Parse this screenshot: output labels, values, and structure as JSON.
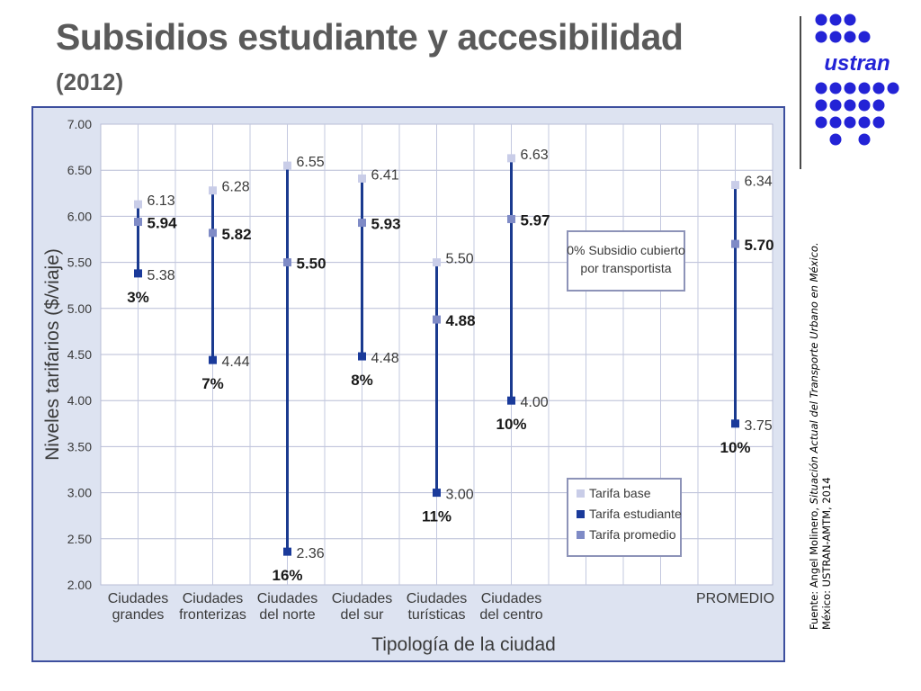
{
  "slide": {
    "title": "Subsidios estudiante y accesibilidad",
    "subtitle": "(2012)",
    "logo_text": "ustran",
    "source_line1_prefix": "Fuente: Angel Molinero, ",
    "source_line1_italic": "Situación Actual del Transporte Urbano en México.",
    "source_line2": "México: USTRAN-AMTM, 2014"
  },
  "colors": {
    "logo_blue": "#2323d6",
    "frame_border": "#3d4f9e",
    "frame_bg": "#dde3f1",
    "plot_bg": "#ffffff",
    "line_blue": "#1a3a8f",
    "tarifa_base": "#c9cde8",
    "tarifa_estudiante": "#1a3a9a",
    "tarifa_promedio": "#7f8bc6"
  },
  "chart_data": {
    "type": "range",
    "xlabel": "Tipología de la ciudad",
    "ylabel": "Niveles tarifarios ($/viaje)",
    "ylim": [
      2.0,
      7.0
    ],
    "y_ticks": [
      "2.00",
      "2.50",
      "3.00",
      "3.50",
      "4.00",
      "4.50",
      "5.00",
      "5.50",
      "6.00",
      "6.50",
      "7.00"
    ],
    "grid": true,
    "categories": [
      {
        "line1": "Ciudades",
        "line2": "grandes"
      },
      {
        "line1": "Ciudades",
        "line2": "fronterizas"
      },
      {
        "line1": "Ciudades",
        "line2": "del norte"
      },
      {
        "line1": "Ciudades",
        "line2": "del sur"
      },
      {
        "line1": "Ciudades",
        "line2": "turísticas"
      },
      {
        "line1": "Ciudades",
        "line2": "del centro"
      },
      {
        "line1": "",
        "line2": ""
      },
      {
        "line1": "",
        "line2": ""
      },
      {
        "line1": "PROMEDIO",
        "line2": ""
      }
    ],
    "series": [
      {
        "name": "Tarifa base",
        "values": [
          6.13,
          6.28,
          6.55,
          6.41,
          5.5,
          6.63,
          null,
          null,
          6.34
        ],
        "labels": [
          "6.13",
          "6.28",
          "6.55",
          "6.41",
          "5.50",
          "6.63",
          null,
          null,
          "6.34"
        ]
      },
      {
        "name": "Tarifa estudiante",
        "values": [
          5.38,
          4.44,
          2.36,
          4.48,
          3.0,
          4.0,
          null,
          null,
          3.75
        ],
        "labels": [
          "5.38",
          "4.44",
          "2.36",
          "4.48",
          "3.00",
          "4.00",
          null,
          null,
          "3.75"
        ]
      },
      {
        "name": "Tarifa promedio",
        "values": [
          5.94,
          5.82,
          5.5,
          5.93,
          4.88,
          5.97,
          null,
          null,
          5.7
        ],
        "labels": [
          "5.94",
          "5.82",
          "5.50",
          "5.93",
          "4.88",
          "5.97",
          null,
          null,
          "5.70"
        ]
      }
    ],
    "subsidy_labels": [
      "3%",
      "7%",
      "16%",
      "8%",
      "11%",
      "10%",
      null,
      null,
      "10%"
    ],
    "annotation": {
      "line1": "0% Subsidio cubierto",
      "line2": "por transportista"
    },
    "legend_position": "bottom-right"
  }
}
